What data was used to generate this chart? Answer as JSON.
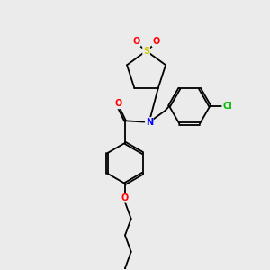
{
  "background_color": "#ebebeb",
  "bond_color": "#000000",
  "atom_colors": {
    "O": "#ff0000",
    "N": "#0000ff",
    "S": "#cccc00",
    "Cl": "#00bb00",
    "C": "#000000"
  },
  "lw": 1.3,
  "dbo": 0.035
}
